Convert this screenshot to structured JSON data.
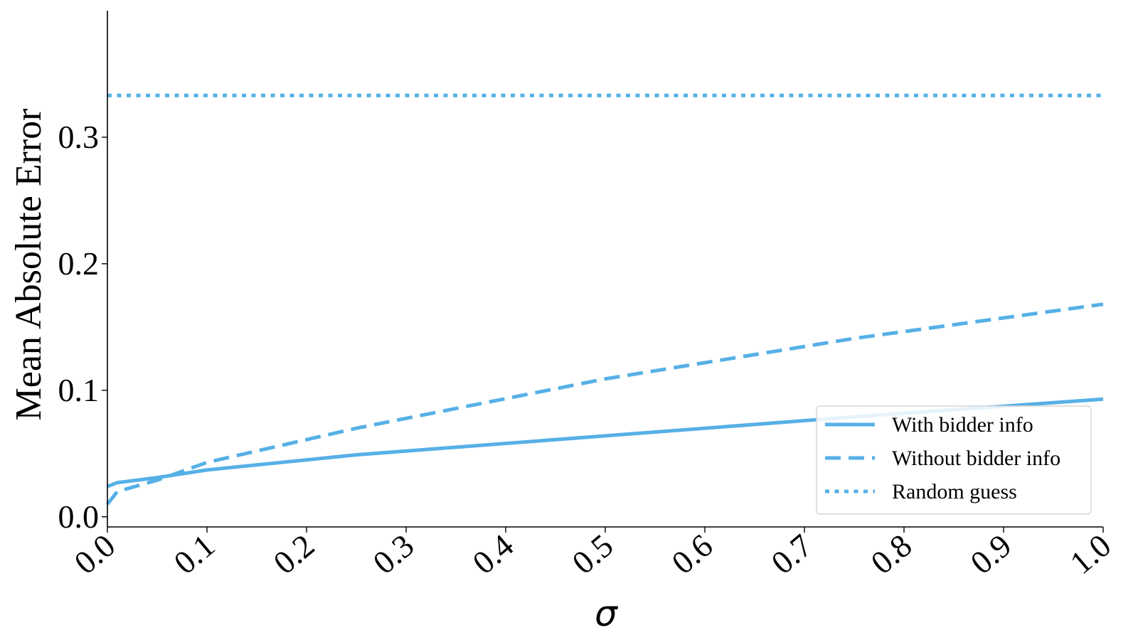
{
  "chart_data": {
    "type": "line",
    "xlabel": "σ",
    "ylabel": "Mean Absolute Error",
    "xlim": [
      0.0,
      1.0
    ],
    "ylim": [
      -0.008,
      0.4
    ],
    "xticks": [
      "0.0",
      "0.1",
      "0.2",
      "0.3",
      "0.4",
      "0.5",
      "0.6",
      "0.7",
      "0.8",
      "0.9",
      "1.0"
    ],
    "yticks": [
      "0.0",
      "0.1",
      "0.2",
      "0.3"
    ],
    "grid": false,
    "legend_position": "lower-right",
    "color": "#56b0e6",
    "series": [
      {
        "name": "With bidder info",
        "style": "solid",
        "x": [
          0.0,
          0.01,
          0.05,
          0.1,
          0.25,
          0.5,
          0.75,
          1.0
        ],
        "y": [
          0.024,
          0.027,
          0.031,
          0.037,
          0.049,
          0.064,
          0.079,
          0.093
        ]
      },
      {
        "name": "Without bidder info",
        "style": "dashed",
        "x": [
          0.0,
          0.01,
          0.05,
          0.1,
          0.25,
          0.5,
          0.75,
          1.0
        ],
        "y": [
          0.01,
          0.02,
          0.029,
          0.043,
          0.07,
          0.109,
          0.141,
          0.168
        ]
      },
      {
        "name": "Random guess",
        "style": "dotted",
        "x": [
          0.0,
          1.0
        ],
        "y": [
          0.333,
          0.333
        ]
      }
    ]
  }
}
